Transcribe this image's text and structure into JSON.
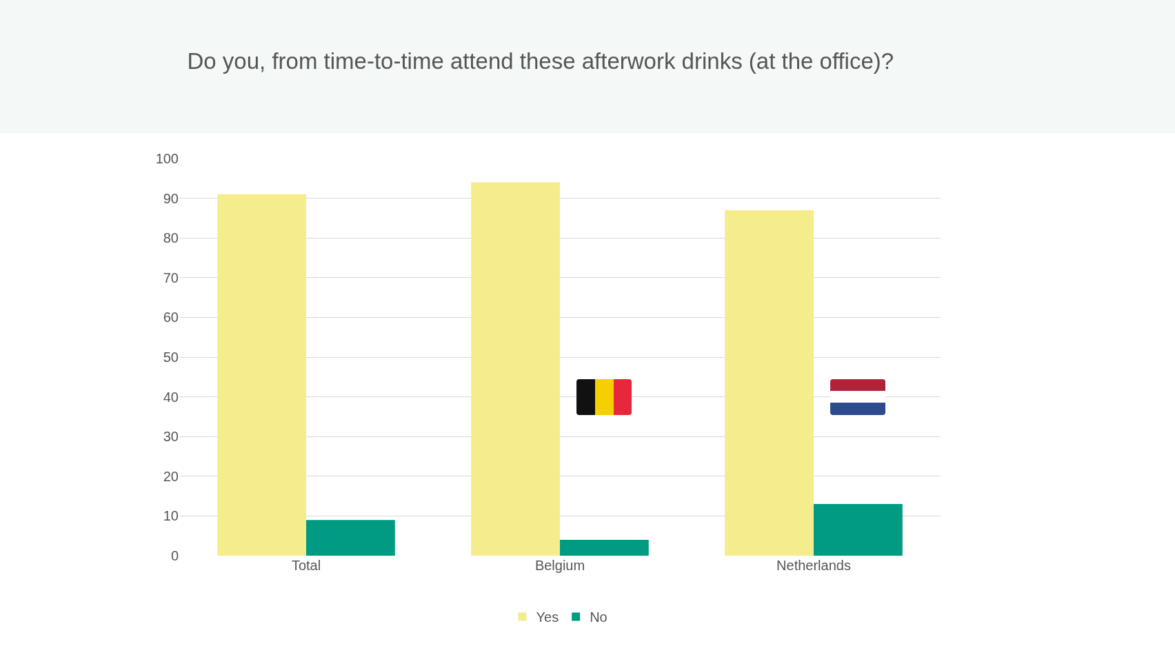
{
  "chart_data": {
    "type": "bar",
    "title": "Do you, from time-to-time attend these afterwork drinks (at the office)?",
    "categories": [
      "Total",
      "Belgium",
      "Netherlands"
    ],
    "series": [
      {
        "name": "Yes",
        "color": "#f5ec8c",
        "values": [
          91,
          94,
          87
        ]
      },
      {
        "name": "No",
        "color": "#009b82",
        "values": [
          9,
          4,
          13
        ]
      }
    ],
    "ylim": [
      0,
      100
    ],
    "yticks": [
      0,
      10,
      20,
      30,
      40,
      50,
      60,
      70,
      80,
      90,
      100
    ],
    "grid": "y",
    "legend": "bottom"
  }
}
